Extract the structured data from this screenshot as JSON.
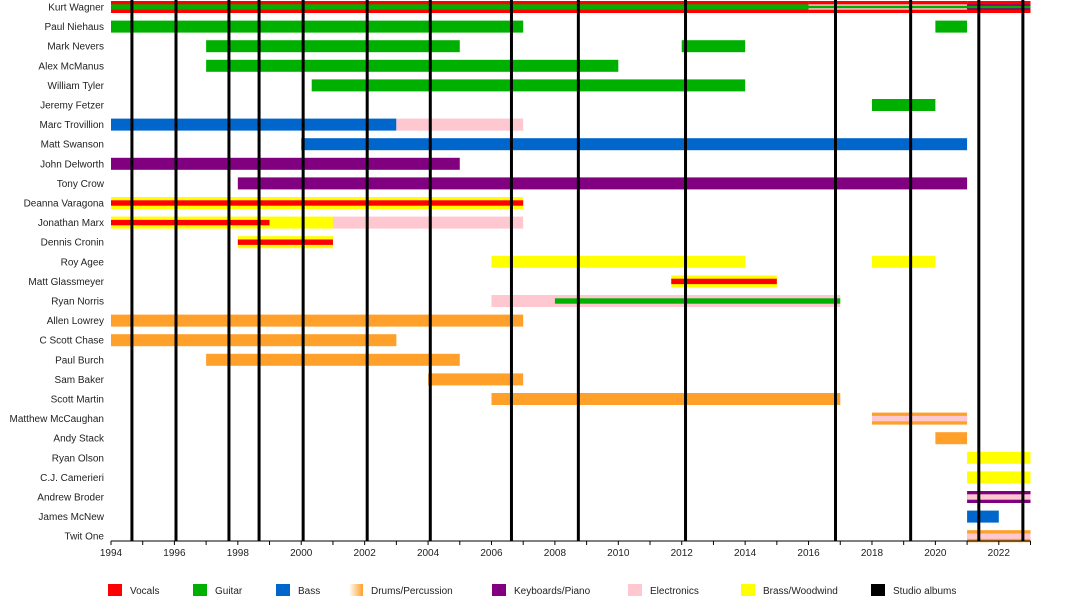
{
  "chart_data": {
    "type": "timeline",
    "xlim": [
      1994,
      2023
    ],
    "x_tick_labels": [
      "1994",
      "1996",
      "1998",
      "2000",
      "2002",
      "2004",
      "2006",
      "2008",
      "2010",
      "2012",
      "2014",
      "2016",
      "2018",
      "2020",
      "2022"
    ],
    "roles": {
      "vocals": {
        "label": "Vocals",
        "color": "#ff0000"
      },
      "guitar": {
        "label": "Guitar",
        "color": "#00b000"
      },
      "bass": {
        "label": "Bass",
        "color": "#0066cc"
      },
      "drums": {
        "label": "Drums/Percussion",
        "color": "#ffa02a"
      },
      "keyboards": {
        "label": "Keyboards/Piano",
        "color": "#800080"
      },
      "electronics": {
        "label": "Electronics",
        "color": "#ffc8d0"
      },
      "brass": {
        "label": "Brass/Woodwind",
        "color": "#ffff00"
      },
      "albums": {
        "label": "Studio albums",
        "color": "#000000"
      }
    },
    "legend_order": [
      "vocals",
      "guitar",
      "bass",
      "drums",
      "keyboards",
      "electronics",
      "brass",
      "albums"
    ],
    "legend_placement": "bottom",
    "studio_albums": [
      1994.66,
      1996.05,
      1997.72,
      1998.67,
      2000.06,
      2002.08,
      2004.07,
      2006.63,
      2008.74,
      2012.12,
      2016.85,
      2019.22,
      2021.37,
      2022.76
    ],
    "members": [
      {
        "name": "Kurt Wagner",
        "periods": [
          {
            "start": 1994,
            "end": 2016,
            "roles": [
              "vocals",
              "guitar"
            ]
          },
          {
            "start": 2016,
            "end": 2021,
            "roles": [
              "vocals",
              "electronics",
              "guitar"
            ]
          },
          {
            "start": 2021,
            "end": 2023,
            "roles": [
              "vocals",
              "keyboards",
              "guitar"
            ]
          }
        ]
      },
      {
        "name": "Paul Niehaus",
        "periods": [
          {
            "start": 1994,
            "end": 2007,
            "roles": [
              "guitar"
            ]
          },
          {
            "start": 2020,
            "end": 2021,
            "roles": [
              "guitar"
            ]
          }
        ]
      },
      {
        "name": "Mark Nevers",
        "periods": [
          {
            "start": 1997,
            "end": 2005,
            "roles": [
              "guitar"
            ]
          },
          {
            "start": 2012,
            "end": 2014,
            "roles": [
              "guitar"
            ]
          }
        ]
      },
      {
        "name": "Alex McManus",
        "periods": [
          {
            "start": 1997,
            "end": 2010,
            "roles": [
              "guitar"
            ]
          }
        ]
      },
      {
        "name": "William Tyler",
        "periods": [
          {
            "start": 2000.33,
            "end": 2014,
            "roles": [
              "guitar"
            ]
          }
        ]
      },
      {
        "name": "Jeremy Fetzer",
        "periods": [
          {
            "start": 2018,
            "end": 2020,
            "roles": [
              "guitar"
            ]
          }
        ]
      },
      {
        "name": "Marc Trovillion",
        "periods": [
          {
            "start": 1994,
            "end": 2003,
            "roles": [
              "bass"
            ]
          },
          {
            "start": 2003,
            "end": 2007,
            "roles": [
              "electronics"
            ]
          }
        ]
      },
      {
        "name": "Matt Swanson",
        "periods": [
          {
            "start": 2000,
            "end": 2021,
            "roles": [
              "bass"
            ]
          }
        ]
      },
      {
        "name": "John Delworth",
        "periods": [
          {
            "start": 1994,
            "end": 2005,
            "roles": [
              "keyboards"
            ]
          }
        ]
      },
      {
        "name": "Tony Crow",
        "periods": [
          {
            "start": 1998,
            "end": 2021,
            "roles": [
              "keyboards"
            ]
          }
        ]
      },
      {
        "name": "Deanna Varagona",
        "periods": [
          {
            "start": 1994,
            "end": 2007,
            "roles": [
              "brass",
              "vocals"
            ]
          }
        ]
      },
      {
        "name": "Jonathan Marx",
        "periods": [
          {
            "start": 1994,
            "end": 1999,
            "roles": [
              "brass",
              "vocals"
            ]
          },
          {
            "start": 1999,
            "end": 2001,
            "roles": [
              "brass"
            ]
          },
          {
            "start": 2001,
            "end": 2007,
            "roles": [
              "electronics"
            ]
          }
        ]
      },
      {
        "name": "Dennis Cronin",
        "periods": [
          {
            "start": 1998,
            "end": 2001,
            "roles": [
              "brass",
              "vocals"
            ]
          }
        ]
      },
      {
        "name": "Roy Agee",
        "periods": [
          {
            "start": 2006,
            "end": 2014,
            "roles": [
              "brass"
            ]
          },
          {
            "start": 2018,
            "end": 2020,
            "roles": [
              "brass"
            ]
          }
        ]
      },
      {
        "name": "Matt Glassmeyer",
        "periods": [
          {
            "start": 2011.67,
            "end": 2015,
            "roles": [
              "brass",
              "vocals"
            ]
          }
        ]
      },
      {
        "name": "Ryan Norris",
        "periods": [
          {
            "start": 2006,
            "end": 2008,
            "roles": [
              "electronics"
            ]
          },
          {
            "start": 2008,
            "end": 2017,
            "roles": [
              "electronics",
              "guitar"
            ]
          }
        ]
      },
      {
        "name": "Allen Lowrey",
        "periods": [
          {
            "start": 1994,
            "end": 2007,
            "roles": [
              "drums"
            ]
          }
        ]
      },
      {
        "name": "C Scott Chase",
        "periods": [
          {
            "start": 1994,
            "end": 2003,
            "roles": [
              "drums"
            ]
          }
        ]
      },
      {
        "name": "Paul Burch",
        "periods": [
          {
            "start": 1997,
            "end": 2005,
            "roles": [
              "drums"
            ]
          }
        ]
      },
      {
        "name": "Sam Baker",
        "periods": [
          {
            "start": 2004,
            "end": 2007,
            "roles": [
              "drums"
            ]
          }
        ]
      },
      {
        "name": "Scott Martin",
        "periods": [
          {
            "start": 2006,
            "end": 2017,
            "roles": [
              "drums"
            ]
          }
        ]
      },
      {
        "name": "Matthew McCaughan",
        "periods": [
          {
            "start": 2018,
            "end": 2021,
            "roles": [
              "drums",
              "electronics"
            ]
          }
        ]
      },
      {
        "name": "Andy Stack",
        "periods": [
          {
            "start": 2020,
            "end": 2021,
            "roles": [
              "drums"
            ]
          }
        ]
      },
      {
        "name": "Ryan Olson",
        "periods": [
          {
            "start": 2021,
            "end": 2023,
            "roles": [
              "brass"
            ]
          }
        ]
      },
      {
        "name": "C.J. Camerieri",
        "periods": [
          {
            "start": 2021,
            "end": 2023,
            "roles": [
              "brass"
            ]
          }
        ]
      },
      {
        "name": "Andrew Broder",
        "periods": [
          {
            "start": 2021,
            "end": 2023,
            "roles": [
              "keyboards",
              "electronics"
            ]
          }
        ]
      },
      {
        "name": "James McNew",
        "periods": [
          {
            "start": 2021,
            "end": 2022,
            "roles": [
              "bass"
            ]
          }
        ]
      },
      {
        "name": "Twit One",
        "periods": [
          {
            "start": 2021,
            "end": 2023,
            "roles": [
              "drums",
              "electronics"
            ]
          }
        ]
      }
    ]
  }
}
